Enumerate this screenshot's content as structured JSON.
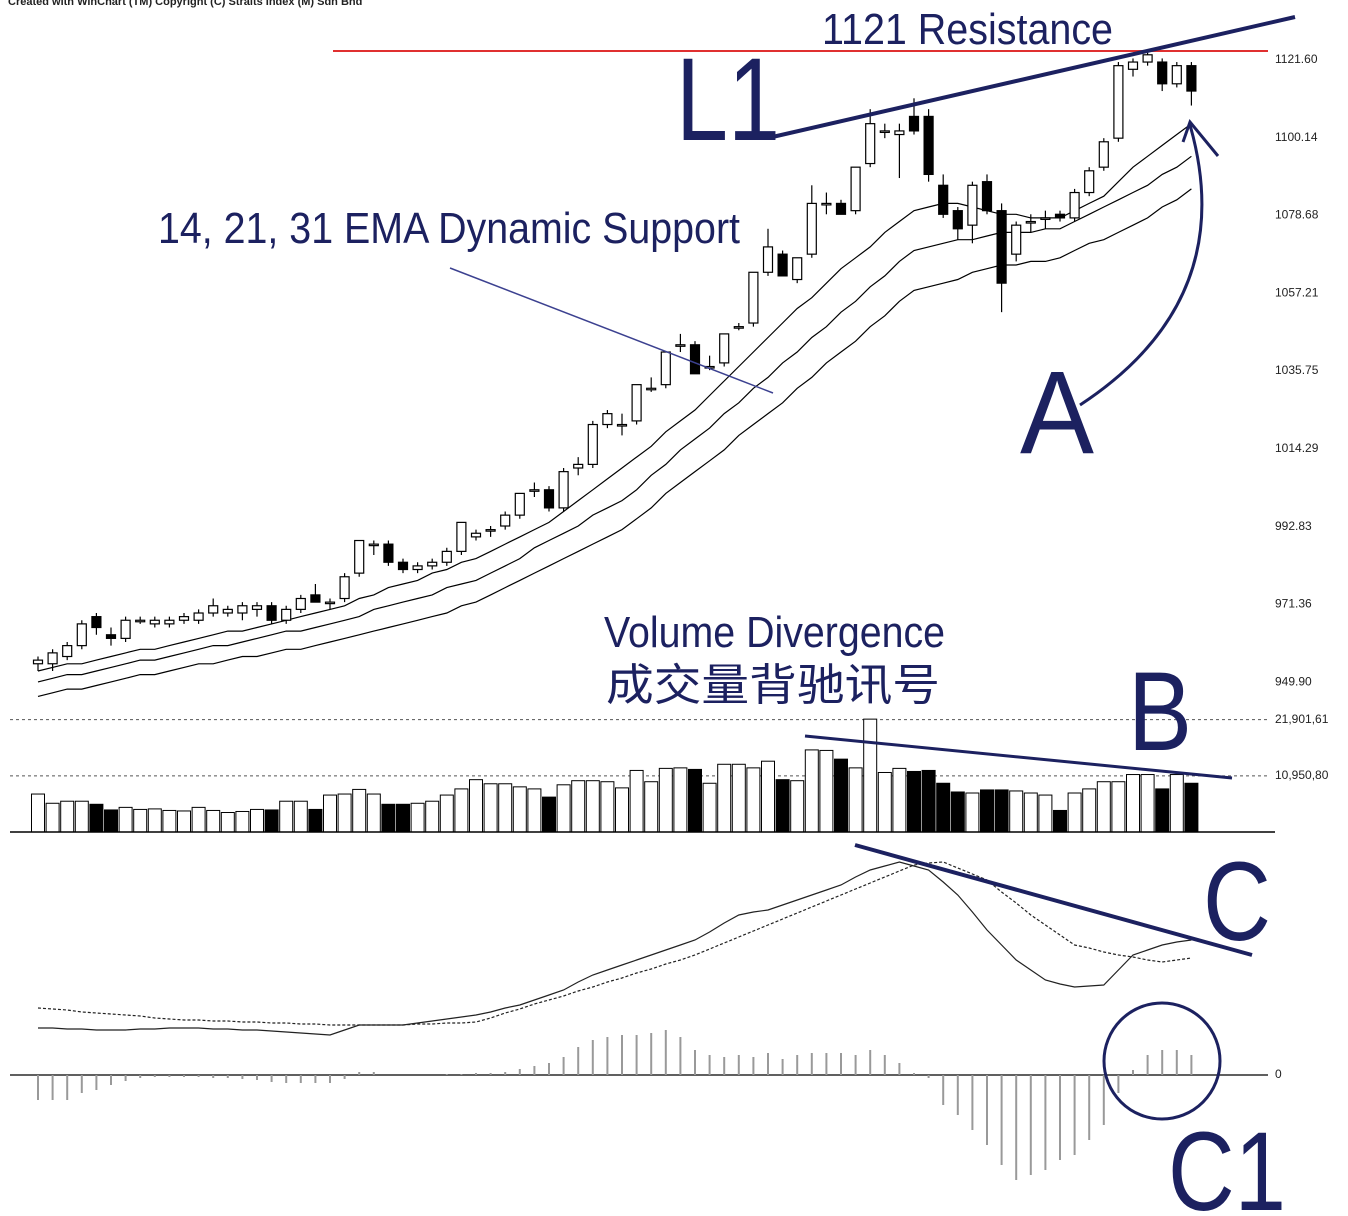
{
  "header": "Created with WinChart (TM)  Copyright (C) Straits Index (M) Sdn Bhd",
  "annotations": {
    "resistance": "1121 Resistance",
    "l1": "L1",
    "ema": "14, 21, 31 EMA Dynamic Support",
    "a": "A",
    "volume": "Volume Divergence",
    "volume_cn": "成交量背驰讯号",
    "b": "B",
    "c": "C",
    "c1": "C1"
  },
  "chart_data": [
    {
      "type": "candlestick",
      "ohlc": [
        [
          955,
          957,
          953,
          956
        ],
        [
          955,
          959,
          953,
          958
        ],
        [
          957,
          961,
          956,
          960
        ],
        [
          960,
          967,
          959,
          966
        ],
        [
          968,
          969,
          963,
          965
        ],
        [
          963,
          965,
          960,
          962
        ],
        [
          962,
          968,
          961,
          967
        ],
        [
          967,
          968,
          966,
          967
        ],
        [
          966,
          968,
          965,
          967
        ],
        [
          966,
          968,
          965,
          967
        ],
        [
          967,
          969,
          966,
          968
        ],
        [
          967,
          970,
          966,
          969
        ],
        [
          969,
          973,
          968,
          971
        ],
        [
          969,
          971,
          968,
          970
        ],
        [
          969,
          972,
          967,
          971
        ],
        [
          970,
          972,
          968,
          971
        ],
        [
          971,
          972,
          966,
          967
        ],
        [
          967,
          971,
          966,
          970
        ],
        [
          970,
          974,
          969,
          973
        ],
        [
          974,
          977,
          972,
          972
        ],
        [
          972,
          973,
          970,
          972
        ],
        [
          973,
          980,
          972,
          979
        ],
        [
          980,
          989,
          979,
          989
        ],
        [
          988,
          989,
          985,
          988
        ],
        [
          988,
          989,
          982,
          983
        ],
        [
          983,
          984,
          980,
          981
        ],
        [
          981,
          983,
          980,
          982
        ],
        [
          982,
          984,
          981,
          983
        ],
        [
          983,
          987,
          982,
          986
        ],
        [
          986,
          994,
          985,
          994
        ],
        [
          990,
          992,
          989,
          991
        ],
        [
          992,
          993,
          990,
          992
        ],
        [
          993,
          997,
          992,
          996
        ],
        [
          996,
          1002,
          995,
          1002
        ],
        [
          1003,
          1005,
          1001,
          1003
        ],
        [
          1003,
          1004,
          997,
          998
        ],
        [
          998,
          1009,
          997,
          1008
        ],
        [
          1009,
          1012,
          1007,
          1010
        ],
        [
          1010,
          1022,
          1009,
          1021
        ],
        [
          1021,
          1025,
          1020,
          1024
        ],
        [
          1021,
          1024,
          1018,
          1021
        ],
        [
          1022,
          1032,
          1021,
          1032
        ],
        [
          1031,
          1034,
          1030,
          1031
        ],
        [
          1032,
          1041,
          1031,
          1041
        ],
        [
          1043,
          1046,
          1041,
          1043
        ],
        [
          1043,
          1044,
          1035,
          1035
        ],
        [
          1037,
          1040,
          1036,
          1037
        ],
        [
          1038,
          1046,
          1037,
          1046
        ],
        [
          1048,
          1049,
          1047,
          1048
        ],
        [
          1049,
          1063,
          1048,
          1063
        ],
        [
          1063,
          1075,
          1062,
          1070
        ],
        [
          1068,
          1069,
          1062,
          1062
        ],
        [
          1061,
          1067,
          1060,
          1067
        ],
        [
          1068,
          1087,
          1067,
          1082
        ],
        [
          1082,
          1085,
          1079,
          1082
        ],
        [
          1082,
          1083,
          1079,
          1079
        ],
        [
          1080,
          1092,
          1079,
          1092
        ],
        [
          1093,
          1108,
          1092,
          1104
        ],
        [
          1102,
          1104,
          1100,
          1102
        ],
        [
          1101,
          1104,
          1089,
          1102
        ],
        [
          1106,
          1111,
          1101,
          1102
        ],
        [
          1106,
          1108,
          1088,
          1090
        ],
        [
          1087,
          1090,
          1078,
          1079
        ],
        [
          1080,
          1081,
          1072,
          1075
        ],
        [
          1076,
          1088,
          1071,
          1087
        ],
        [
          1088,
          1090,
          1079,
          1080
        ],
        [
          1080,
          1082,
          1052,
          1060
        ],
        [
          1068,
          1077,
          1066,
          1076
        ],
        [
          1077,
          1079,
          1074,
          1077
        ],
        [
          1078,
          1080,
          1075,
          1078
        ],
        [
          1079,
          1080,
          1077,
          1078
        ],
        [
          1078,
          1086,
          1077,
          1085
        ],
        [
          1085,
          1092,
          1084,
          1091
        ],
        [
          1092,
          1100,
          1091,
          1099
        ],
        [
          1100,
          1121,
          1099,
          1120
        ],
        [
          1119,
          1122,
          1117,
          1121
        ],
        [
          1121,
          1124,
          1120,
          1123
        ],
        [
          1121,
          1122,
          1113,
          1115
        ],
        [
          1115,
          1121,
          1114,
          1120
        ],
        [
          1120,
          1121,
          1109,
          1113
        ]
      ],
      "series": [
        {
          "color": "#000000",
          "values": [
            953,
            954,
            955,
            955,
            956,
            957,
            958,
            959,
            959,
            960,
            961,
            962,
            963,
            964,
            964,
            965,
            966,
            967,
            968,
            969,
            970,
            971,
            973,
            974,
            976,
            977,
            978,
            980,
            981,
            983,
            984,
            986,
            988,
            990,
            992,
            994,
            997,
            1000,
            1003,
            1006,
            1009,
            1012,
            1015,
            1019,
            1022,
            1025,
            1029,
            1033,
            1037,
            1041,
            1045,
            1049,
            1053,
            1056,
            1060,
            1064,
            1067,
            1070,
            1074,
            1077,
            1080,
            1081,
            1082,
            1082,
            1081,
            1080,
            1079,
            1079,
            1078,
            1078,
            1078,
            1080,
            1082,
            1084,
            1088,
            1092,
            1095,
            1098,
            1101,
            1104
          ]
        },
        {
          "color": "#000000",
          "values": [
            950,
            951,
            952,
            952,
            953,
            954,
            955,
            956,
            956,
            957,
            958,
            959,
            960,
            960,
            961,
            962,
            963,
            964,
            964,
            965,
            966,
            967,
            968,
            970,
            971,
            972,
            973,
            974,
            976,
            977,
            978,
            980,
            982,
            984,
            987,
            989,
            991,
            993,
            996,
            998,
            1000,
            1003,
            1007,
            1010,
            1014,
            1017,
            1020,
            1024,
            1027,
            1031,
            1034,
            1038,
            1041,
            1045,
            1048,
            1052,
            1055,
            1059,
            1062,
            1066,
            1069,
            1070,
            1071,
            1072,
            1072,
            1073,
            1074,
            1074,
            1074,
            1075,
            1075,
            1077,
            1079,
            1081,
            1083,
            1085,
            1087,
            1090,
            1092,
            1095
          ]
        },
        {
          "color": "#000000",
          "values": [
            946,
            947,
            948,
            948,
            949,
            950,
            951,
            952,
            952,
            953,
            954,
            955,
            955,
            956,
            957,
            957,
            958,
            959,
            959,
            960,
            961,
            962,
            963,
            964,
            965,
            966,
            967,
            968,
            969,
            971,
            972,
            974,
            976,
            978,
            980,
            982,
            984,
            986,
            988,
            990,
            992,
            995,
            998,
            1002,
            1005,
            1008,
            1011,
            1014,
            1018,
            1021,
            1024,
            1027,
            1031,
            1034,
            1038,
            1041,
            1044,
            1048,
            1051,
            1055,
            1058,
            1059,
            1060,
            1061,
            1063,
            1064,
            1065,
            1065,
            1066,
            1066,
            1067,
            1069,
            1071,
            1072,
            1074,
            1076,
            1078,
            1081,
            1083,
            1086
          ]
        }
      ],
      "ylim": [
        945,
        1132.6
      ],
      "yticks": [
        {
          "value": 949.9,
          "label": "949.90"
        },
        971.36,
        992.83,
        1014.29,
        1035.75,
        1057.21,
        1078.68,
        1100.14,
        {
          "value": 1121.6,
          "label": "1121.60"
        }
      ]
    },
    {
      "type": "bar",
      "values": [
        7400,
        5600,
        6000,
        6000,
        5400,
        4300,
        4800,
        4400,
        4500,
        4200,
        4100,
        4800,
        4200,
        3800,
        4000,
        4400,
        4300,
        6000,
        6000,
        4400,
        7200,
        7400,
        8300,
        7400,
        5400,
        5400,
        5600,
        6000,
        7200,
        8400,
        10200,
        9400,
        9400,
        8800,
        8400,
        6800,
        9200,
        10000,
        10000,
        9800,
        8600,
        12000,
        9800,
        12400,
        12500,
        12200,
        9500,
        13200,
        13200,
        12500,
        13800,
        10200,
        10000,
        16000,
        15900,
        14200,
        12500,
        22000,
        11600,
        12400,
        11800,
        12000,
        9500,
        7800,
        7600,
        8200,
        8200,
        8000,
        7600,
        7200,
        4200,
        7600,
        8400,
        9800,
        9800,
        11200,
        11200,
        8400,
        11200,
        9500
      ],
      "ylim": [
        0,
        23000
      ],
      "yticks": [
        {
          "value": 10950.8,
          "label": "10,950,80"
        },
        {
          "value": 21901.61,
          "label": "21,901,61"
        }
      ],
      "grid": true
    },
    {
      "type": "macd",
      "series": [
        {
          "color": "#222222",
          "dash": false,
          "values": [
            4.7,
            4.7,
            4.6,
            4.6,
            4.5,
            4.5,
            4.5,
            4.6,
            4.6,
            4.7,
            4.7,
            4.7,
            4.6,
            4.6,
            4.5,
            4.5,
            4.4,
            4.3,
            4.2,
            4.1,
            4.0,
            4.5,
            5.0,
            5.0,
            5.0,
            5.0,
            5.2,
            5.4,
            5.6,
            5.8,
            6.0,
            6.3,
            6.7,
            7.0,
            7.5,
            8.0,
            8.5,
            9.3,
            10,
            10.5,
            11,
            11.5,
            12,
            12.5,
            13,
            13.5,
            14.3,
            15.2,
            16,
            16.3,
            16.5,
            17,
            17.5,
            18,
            18.5,
            19,
            19.8,
            20.5,
            20.9,
            21.3,
            20.9,
            20.5,
            19.3,
            18,
            16.3,
            14.5,
            13,
            11.5,
            10.5,
            9.5,
            9.1,
            8.8,
            8.9,
            9,
            10.5,
            12,
            12.5,
            13,
            13.3,
            13.5
          ]
        },
        {
          "color": "#222222",
          "dash": true,
          "values": [
            6.7,
            6.6,
            6.5,
            6.3,
            6.2,
            6.1,
            6.0,
            5.9,
            5.7,
            5.6,
            5.5,
            5.5,
            5.4,
            5.4,
            5.3,
            5.3,
            5.2,
            5.2,
            5.1,
            5.1,
            5.0,
            5,
            5,
            5,
            5,
            5,
            5.1,
            5.1,
            5.2,
            5.2,
            5.3,
            5.7,
            6.2,
            6.6,
            7.1,
            7.5,
            7.9,
            8.4,
            8.8,
            9.3,
            9.7,
            10.2,
            10.6,
            11.1,
            11.5,
            12,
            12.6,
            13.2,
            13.8,
            14.4,
            15,
            15.6,
            16.2,
            16.8,
            17.4,
            18,
            18.6,
            19.2,
            19.8,
            20.4,
            21,
            21.2,
            21.3,
            20.7,
            20.1,
            19.5,
            18.3,
            17.2,
            16,
            15,
            14,
            13,
            12.7,
            12.3,
            12,
            11.8,
            11.5,
            11.3,
            11.5,
            11.7
          ]
        }
      ],
      "histogram": [
        -2.5,
        -2.5,
        -2.5,
        -1.8,
        -1.5,
        -1,
        -0.6,
        -0.3,
        -0.2,
        -0.2,
        -0.2,
        -0.2,
        -0.3,
        -0.3,
        -0.4,
        -0.5,
        -0.7,
        -0.8,
        -0.8,
        -0.8,
        -0.8,
        -0.4,
        0.3,
        0.3,
        0,
        0,
        0,
        0,
        0.1,
        0.1,
        0.2,
        0.2,
        0.3,
        0.6,
        0.9,
        1.2,
        1.8,
        2.8,
        3.5,
        3.8,
        4,
        4,
        4.2,
        4.5,
        3.8,
        2.5,
        2,
        1.8,
        2,
        1.8,
        2.2,
        1.6,
        2,
        2.2,
        2.2,
        2.2,
        2,
        2.5,
        2,
        1.2,
        0.2,
        -0.3,
        -3,
        -4,
        -5.5,
        -7,
        -9,
        -10.5,
        -10,
        -9.5,
        -8.5,
        -8,
        -6.5,
        -5,
        -1.8,
        0.5,
        2,
        2.5,
        2.5,
        2
      ],
      "histogram_color": "#999999",
      "ylim": [
        -12.5,
        23.5
      ],
      "yticks": [
        0
      ]
    }
  ]
}
